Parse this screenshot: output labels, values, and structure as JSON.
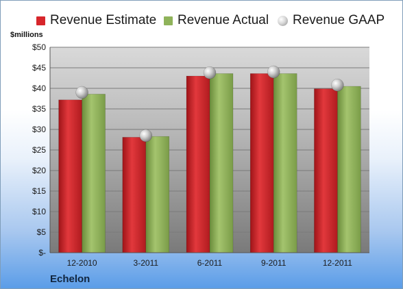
{
  "chart_data": {
    "type": "bar",
    "categories": [
      "12-2010",
      "3-2011",
      "6-2011",
      "9-2011",
      "12-2011"
    ],
    "series": [
      {
        "name": "Revenue Estimate",
        "values": [
          37.2,
          28.1,
          43.0,
          43.6,
          39.9
        ],
        "color": "#d7262b",
        "marker": "bar"
      },
      {
        "name": "Revenue Actual",
        "values": [
          38.6,
          28.3,
          43.6,
          43.6,
          40.5
        ],
        "color": "#8fb35a",
        "marker": "bar"
      },
      {
        "name": "Revenue GAAP",
        "values": [
          39.0,
          28.5,
          43.8,
          44.0,
          40.8
        ],
        "color": "#b8b8b8",
        "marker": "circle"
      }
    ],
    "ylabel": "$millions",
    "ylim": [
      0,
      50
    ],
    "yticks": [
      0,
      5,
      10,
      15,
      20,
      25,
      30,
      35,
      40,
      45,
      50
    ],
    "ytick_labels": [
      "$-",
      "$5",
      "$10",
      "$15",
      "$20",
      "$25",
      "$30",
      "$35",
      "$40",
      "$45",
      "$50"
    ],
    "grid": true,
    "legend": "top",
    "company": "Echelon"
  }
}
